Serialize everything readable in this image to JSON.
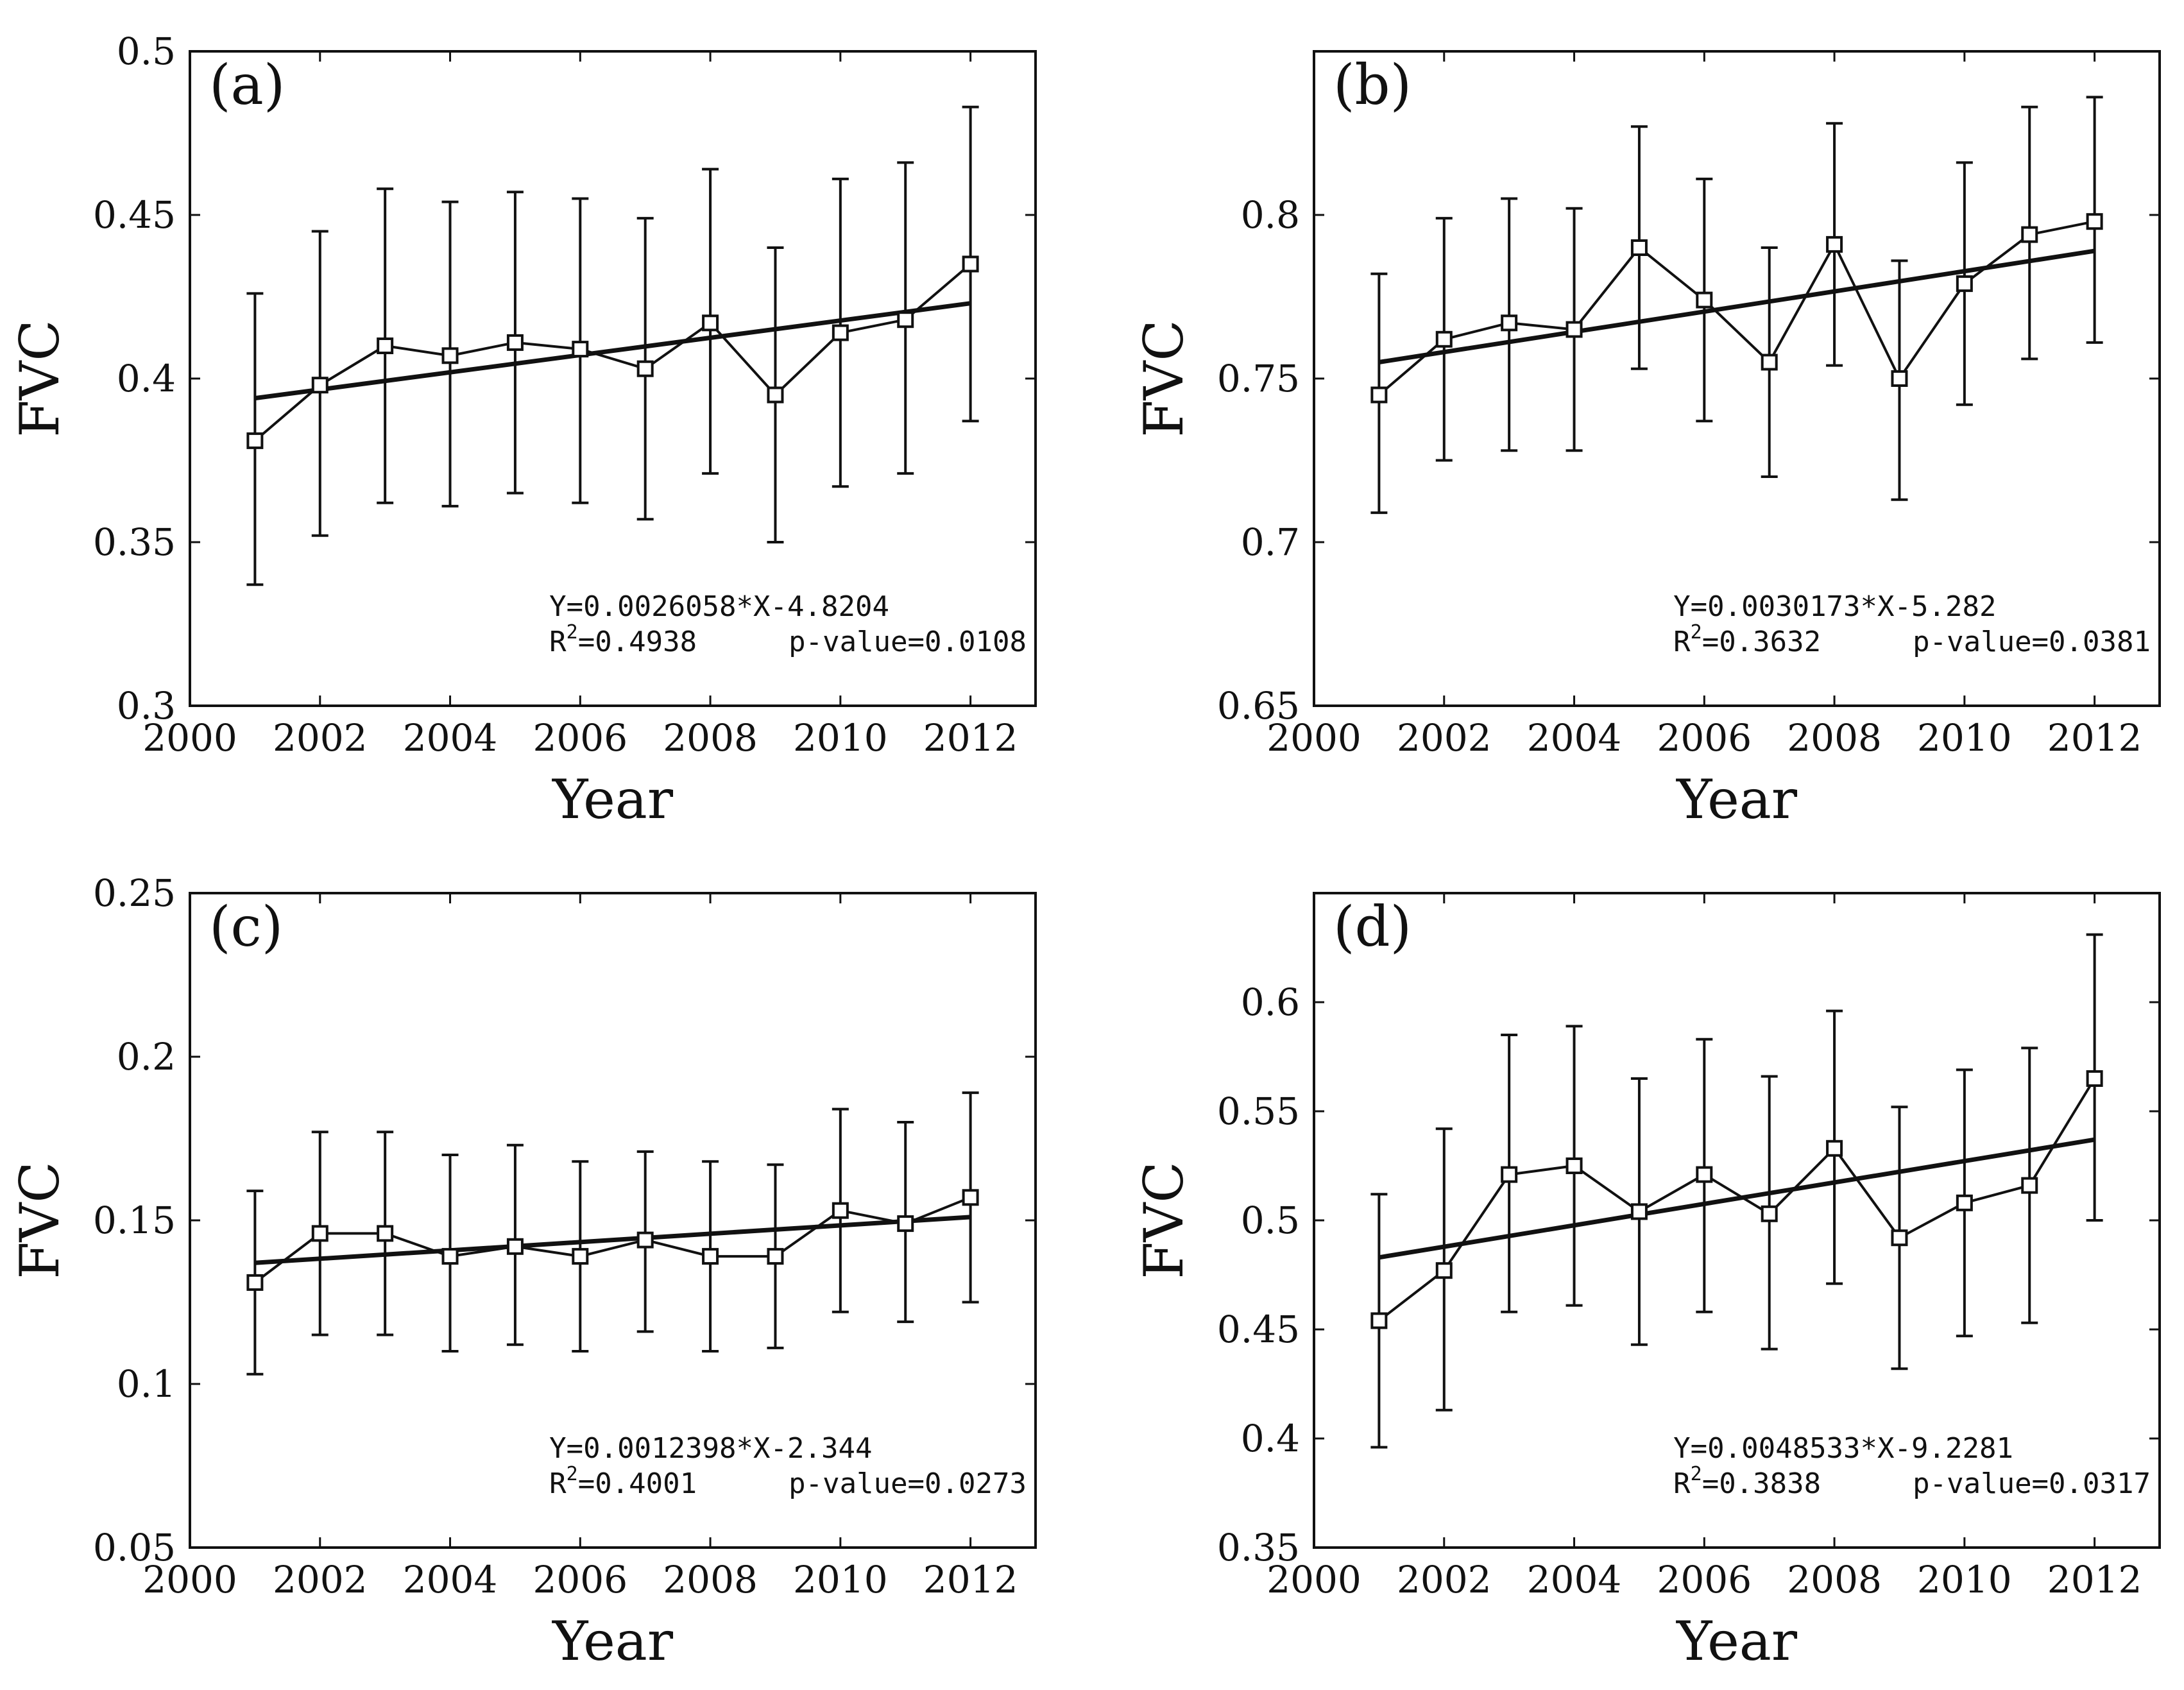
{
  "chart_data": [
    {
      "type": "line",
      "panel_label": "(a)",
      "xlabel": "Year",
      "ylabel": "FVC",
      "xlim": [
        2000,
        2013
      ],
      "ylim": [
        0.3,
        0.5
      ],
      "xticks": [
        2000,
        2002,
        2004,
        2006,
        2008,
        2010,
        2012
      ],
      "xtick_labels": [
        "2000",
        "2002",
        "2004",
        "2006",
        "2008",
        "2010",
        "2012"
      ],
      "yticks": [
        0.3,
        0.35,
        0.4,
        0.45,
        0.5
      ],
      "ytick_labels": [
        "0.3",
        "0.35",
        "0.4",
        "0.45",
        "0.5"
      ],
      "x": [
        2001,
        2002,
        2003,
        2004,
        2005,
        2006,
        2007,
        2008,
        2009,
        2010,
        2011,
        2012
      ],
      "series": [
        {
          "name": "FVC",
          "values": [
            0.381,
            0.398,
            0.41,
            0.407,
            0.411,
            0.409,
            0.403,
            0.417,
            0.395,
            0.414,
            0.418,
            0.435
          ],
          "err_low": [
            0.337,
            0.352,
            0.362,
            0.361,
            0.365,
            0.362,
            0.357,
            0.371,
            0.35,
            0.367,
            0.371,
            0.387
          ],
          "err_high": [
            0.426,
            0.445,
            0.458,
            0.454,
            0.457,
            0.455,
            0.449,
            0.464,
            0.44,
            0.461,
            0.466,
            0.483
          ]
        }
      ],
      "trend": {
        "x": [
          2001,
          2012
        ],
        "y": [
          0.394,
          0.423
        ]
      },
      "annotation_eq": "Y=0.0026058*X-4.8204",
      "annotation_r2_label": "R",
      "annotation_r2_sup": "2",
      "annotation_r2_value": "=0.4938",
      "annotation_p": "p-value=0.0108"
    },
    {
      "type": "line",
      "panel_label": "(b)",
      "xlabel": "Year",
      "ylabel": "FVC",
      "xlim": [
        2000,
        2013
      ],
      "ylim": [
        0.65,
        0.85
      ],
      "xticks": [
        2000,
        2002,
        2004,
        2006,
        2008,
        2010,
        2012
      ],
      "xtick_labels": [
        "2000",
        "2002",
        "2004",
        "2006",
        "2008",
        "2010",
        "2012"
      ],
      "yticks": [
        0.65,
        0.7,
        0.75,
        0.8
      ],
      "ytick_labels": [
        "0.65",
        "0.7",
        "0.75",
        "0.8"
      ],
      "x": [
        2001,
        2002,
        2003,
        2004,
        2005,
        2006,
        2007,
        2008,
        2009,
        2010,
        2011,
        2012
      ],
      "series": [
        {
          "name": "FVC",
          "values": [
            0.745,
            0.762,
            0.767,
            0.765,
            0.79,
            0.774,
            0.755,
            0.791,
            0.75,
            0.779,
            0.794,
            0.798
          ],
          "err_low": [
            0.709,
            0.725,
            0.728,
            0.728,
            0.753,
            0.737,
            0.72,
            0.754,
            0.713,
            0.742,
            0.756,
            0.761
          ],
          "err_high": [
            0.782,
            0.799,
            0.805,
            0.802,
            0.827,
            0.811,
            0.79,
            0.828,
            0.786,
            0.816,
            0.833,
            0.836
          ]
        }
      ],
      "trend": {
        "x": [
          2001,
          2012
        ],
        "y": [
          0.755,
          0.789
        ]
      },
      "annotation_eq": "Y=0.0030173*X-5.282",
      "annotation_r2_label": "R",
      "annotation_r2_sup": "2",
      "annotation_r2_value": "=0.3632",
      "annotation_p": "p-value=0.0381"
    },
    {
      "type": "line",
      "panel_label": "(c)",
      "xlabel": "Year",
      "ylabel": "FVC",
      "xlim": [
        2000,
        2013
      ],
      "ylim": [
        0.05,
        0.25
      ],
      "xticks": [
        2000,
        2002,
        2004,
        2006,
        2008,
        2010,
        2012
      ],
      "xtick_labels": [
        "2000",
        "2002",
        "2004",
        "2006",
        "2008",
        "2010",
        "2012"
      ],
      "yticks": [
        0.05,
        0.1,
        0.15,
        0.2,
        0.25
      ],
      "ytick_labels": [
        "0.05",
        "0.1",
        "0.15",
        "0.2",
        "0.25"
      ],
      "x": [
        2001,
        2002,
        2003,
        2004,
        2005,
        2006,
        2007,
        2008,
        2009,
        2010,
        2011,
        2012
      ],
      "series": [
        {
          "name": "FVC",
          "values": [
            0.131,
            0.146,
            0.146,
            0.139,
            0.142,
            0.139,
            0.144,
            0.139,
            0.139,
            0.153,
            0.149,
            0.157
          ],
          "err_low": [
            0.103,
            0.115,
            0.115,
            0.11,
            0.112,
            0.11,
            0.116,
            0.11,
            0.111,
            0.122,
            0.119,
            0.125
          ],
          "err_high": [
            0.159,
            0.177,
            0.177,
            0.17,
            0.173,
            0.168,
            0.171,
            0.168,
            0.167,
            0.184,
            0.18,
            0.189
          ]
        }
      ],
      "trend": {
        "x": [
          2001,
          2012
        ],
        "y": [
          0.137,
          0.151
        ]
      },
      "annotation_eq": "Y=0.0012398*X-2.344",
      "annotation_r2_label": "R",
      "annotation_r2_sup": "2",
      "annotation_r2_value": "=0.4001",
      "annotation_p": "p-value=0.0273"
    },
    {
      "type": "line",
      "panel_label": "(d)",
      "xlabel": "Year",
      "ylabel": "FVC",
      "xlim": [
        2000,
        2013
      ],
      "ylim": [
        0.35,
        0.65
      ],
      "xticks": [
        2000,
        2002,
        2004,
        2006,
        2008,
        2010,
        2012
      ],
      "xtick_labels": [
        "2000",
        "2002",
        "2004",
        "2006",
        "2008",
        "2010",
        "2012"
      ],
      "yticks": [
        0.35,
        0.4,
        0.45,
        0.5,
        0.55,
        0.6
      ],
      "ytick_labels": [
        "0.35",
        "0.4",
        "0.45",
        "0.5",
        "0.55",
        "0.6"
      ],
      "x": [
        2001,
        2002,
        2003,
        2004,
        2005,
        2006,
        2007,
        2008,
        2009,
        2010,
        2011,
        2012
      ],
      "series": [
        {
          "name": "FVC",
          "values": [
            0.454,
            0.477,
            0.521,
            0.525,
            0.504,
            0.521,
            0.503,
            0.533,
            0.492,
            0.508,
            0.516,
            0.565
          ],
          "err_low": [
            0.396,
            0.413,
            0.458,
            0.461,
            0.443,
            0.458,
            0.441,
            0.471,
            0.432,
            0.447,
            0.453,
            0.5
          ],
          "err_high": [
            0.512,
            0.542,
            0.585,
            0.589,
            0.565,
            0.583,
            0.566,
            0.596,
            0.552,
            0.569,
            0.579,
            0.631
          ]
        }
      ],
      "trend": {
        "x": [
          2001,
          2012
        ],
        "y": [
          0.483,
          0.537
        ]
      },
      "annotation_eq": "Y=0.0048533*X-9.2281",
      "annotation_r2_label": "R",
      "annotation_r2_sup": "2",
      "annotation_r2_value": "=0.3838",
      "annotation_p": "p-value=0.0317"
    }
  ]
}
